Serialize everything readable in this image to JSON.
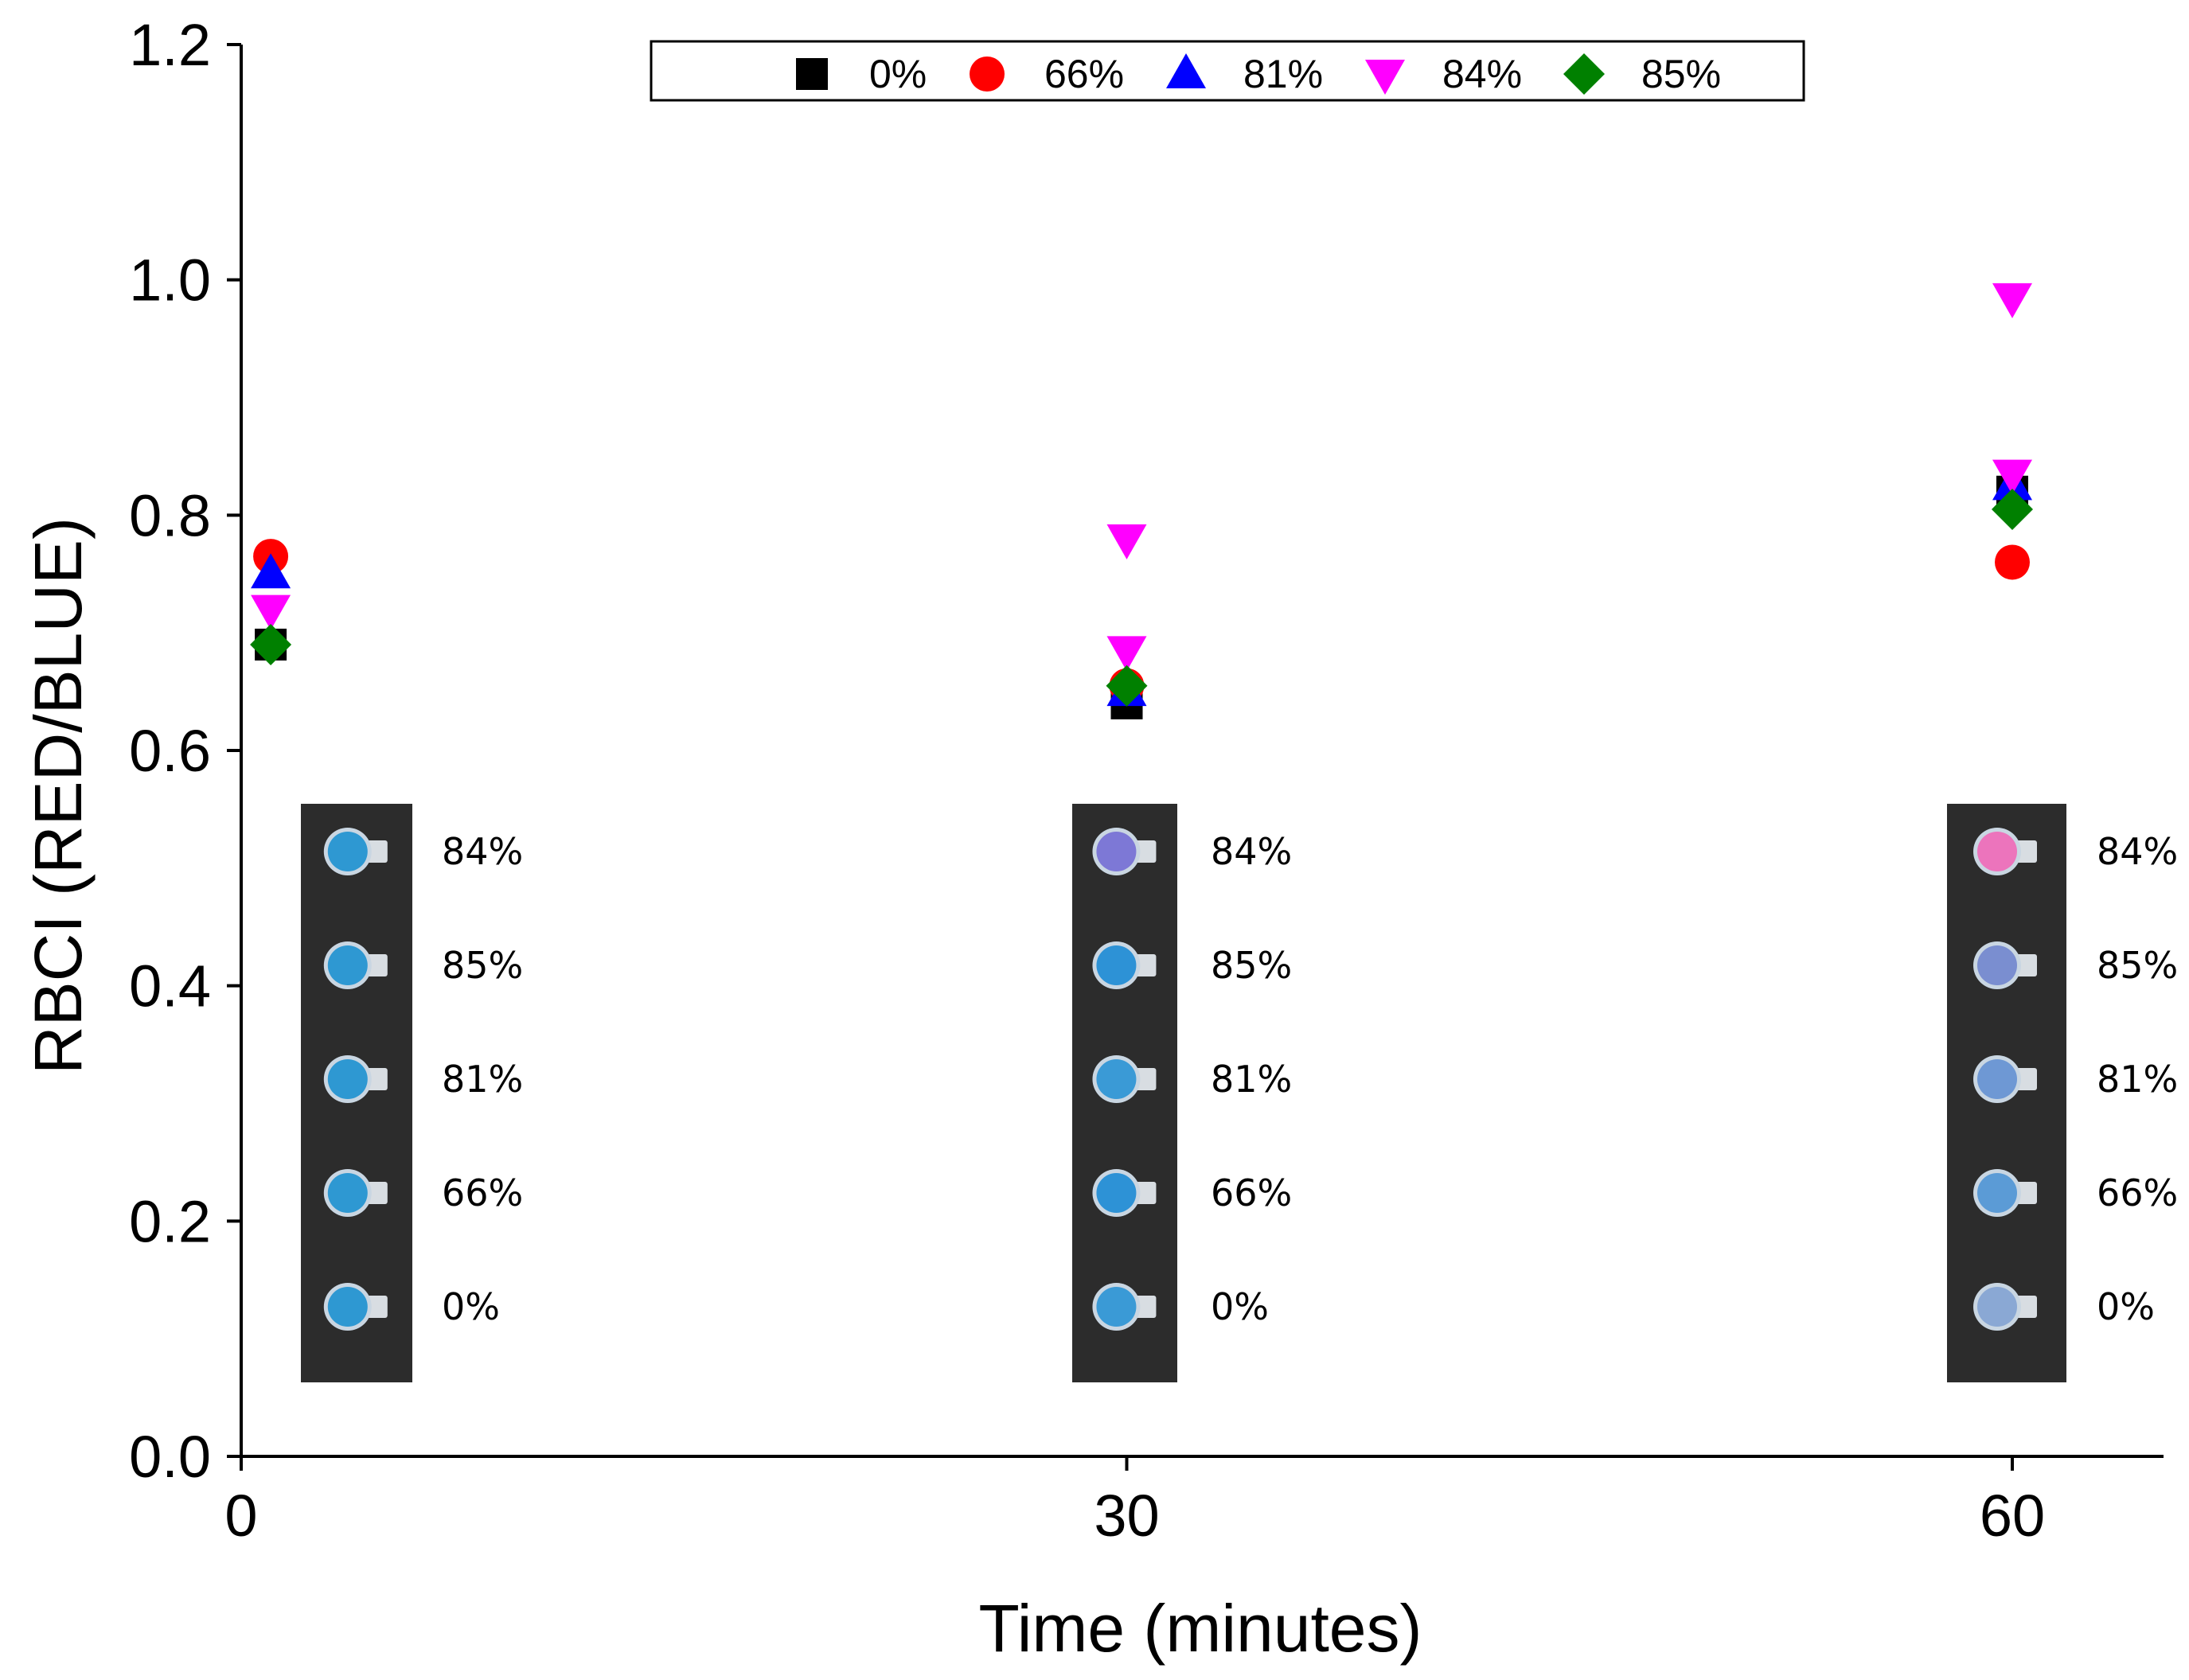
{
  "chart_data": {
    "type": "scatter",
    "title": "",
    "xlabel": "Time (minutes)",
    "ylabel": "RBCI (RED/BLUE)",
    "xlim": [
      0,
      65
    ],
    "ylim": [
      0.0,
      1.2
    ],
    "x_ticks": [
      "0",
      "30",
      "60"
    ],
    "y_ticks": [
      "0.0",
      "0.2",
      "0.4",
      "0.6",
      "0.8",
      "1.0",
      "1.2"
    ],
    "grid": false,
    "legend_position": "top-center",
    "series": [
      {
        "name": "0%",
        "color": "#000000",
        "marker": "square",
        "points": [
          [
            1,
            0.69
          ],
          [
            30,
            0.64
          ],
          [
            60,
            0.82
          ]
        ]
      },
      {
        "name": "66%",
        "color": "#ff0000",
        "marker": "circle",
        "points": [
          [
            1,
            0.765
          ],
          [
            30,
            0.655
          ],
          [
            60,
            0.76
          ]
        ]
      },
      {
        "name": "81%",
        "color": "#0000ff",
        "marker": "triangle-up",
        "points": [
          [
            1,
            0.75
          ],
          [
            30,
            0.65
          ],
          [
            60,
            0.825
          ]
        ]
      },
      {
        "name": "84%",
        "color": "#ff00ff",
        "marker": "triangle-down",
        "points": [
          [
            1,
            0.72
          ],
          [
            30,
            0.78
          ],
          [
            30,
            0.685
          ],
          [
            60,
            0.985
          ],
          [
            60,
            0.835
          ]
        ]
      },
      {
        "name": "85%",
        "color": "#008000",
        "marker": "diamond",
        "points": [
          [
            1,
            0.69
          ],
          [
            30,
            0.655
          ],
          [
            60,
            0.805
          ]
        ]
      }
    ],
    "inset_photos": [
      {
        "time": "0",
        "labels": [
          "84%",
          "85%",
          "81%",
          "66%",
          "0%"
        ],
        "spot_colors": [
          "#2e98d2",
          "#2e98d2",
          "#2e98d2",
          "#2e98d2",
          "#2e98d2"
        ]
      },
      {
        "time": "30",
        "labels": [
          "84%",
          "85%",
          "81%",
          "66%",
          "0%"
        ],
        "spot_colors": [
          "#7d78d6",
          "#2d92d6",
          "#3a9ad6",
          "#2d92d6",
          "#3a9ad6"
        ]
      },
      {
        "time": "60",
        "labels": [
          "84%",
          "85%",
          "81%",
          "66%",
          "0%"
        ],
        "spot_colors": [
          "#ec74bc",
          "#7a8ed0",
          "#6e98d4",
          "#5b9bd6",
          "#8aa8d4"
        ]
      }
    ]
  }
}
